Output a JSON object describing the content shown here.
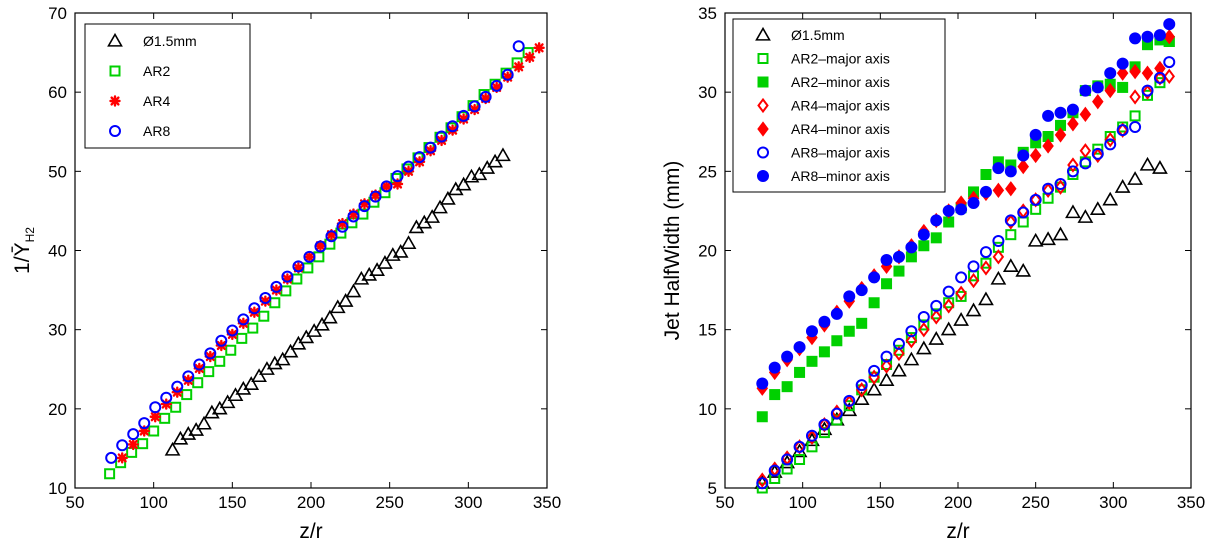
{
  "chart_data": [
    {
      "type": "scatter",
      "xlabel": "z/r",
      "ylabel": "1/",
      "ylabel_symbol": "Ȳ",
      "ylabel_subscript": "H2",
      "xlim": [
        50,
        350
      ],
      "ylim": [
        10,
        70
      ],
      "xticks": [
        "50",
        "100",
        "150",
        "200",
        "250",
        "300",
        "350"
      ],
      "yticks": [
        "10",
        "20",
        "30",
        "40",
        "50",
        "60",
        "70"
      ],
      "grid": false,
      "legend_position": "top-left",
      "series": [
        {
          "name": "Ø1.5mm",
          "marker": "triangle",
          "filled": false,
          "color": "#000000",
          "x": [
            112,
            117,
            122,
            127,
            132,
            137,
            142,
            147,
            152,
            157,
            162,
            167,
            172,
            177,
            182,
            187,
            192,
            197,
            202,
            207,
            212,
            217,
            222,
            227,
            232,
            237,
            242,
            247,
            252,
            257,
            262,
            267,
            272,
            277,
            282,
            287,
            292,
            297,
            302,
            307,
            312,
            317,
            322
          ],
          "y": [
            14.8,
            16.2,
            16.8,
            17.3,
            18.1,
            19.5,
            20.0,
            20.8,
            21.7,
            22.5,
            23.1,
            24.1,
            25.0,
            25.7,
            26.2,
            27.2,
            28.2,
            29.0,
            29.8,
            30.6,
            31.5,
            32.8,
            33.6,
            34.8,
            36.4,
            36.9,
            37.5,
            38.4,
            39.4,
            39.8,
            40.9,
            42.9,
            43.5,
            44.2,
            45.4,
            46.5,
            47.7,
            48.3,
            49.3,
            49.6,
            50.4,
            51.2,
            52.0
          ]
        },
        {
          "name": "AR2",
          "marker": "square",
          "filled": false,
          "color": "#00d000",
          "x": [
            72,
            79,
            86,
            93,
            100,
            107,
            114,
            121,
            128,
            135,
            142,
            149,
            156,
            163,
            170,
            177,
            184,
            191,
            198,
            205,
            212,
            219,
            226,
            233,
            240,
            247,
            254,
            261,
            268,
            275,
            282,
            289,
            296,
            303,
            310,
            317,
            324,
            331,
            338
          ],
          "y": [
            11.8,
            13.2,
            14.5,
            15.6,
            17.2,
            18.8,
            20.2,
            21.8,
            23.3,
            24.7,
            26.0,
            27.4,
            28.9,
            30.2,
            31.7,
            33.4,
            34.9,
            36.4,
            37.8,
            39.2,
            40.8,
            42.2,
            43.5,
            44.6,
            46.1,
            47.3,
            49.1,
            50.3,
            51.7,
            53.0,
            54.3,
            55.5,
            56.9,
            58.3,
            59.7,
            61.0,
            62.4,
            63.7,
            65.0
          ]
        },
        {
          "name": "AR4",
          "marker": "asterisk",
          "filled": true,
          "color": "#ff0000",
          "x": [
            80,
            87,
            94,
            101,
            108,
            115,
            122,
            129,
            136,
            143,
            150,
            157,
            164,
            171,
            178,
            185,
            192,
            199,
            206,
            213,
            220,
            227,
            234,
            241,
            248,
            255,
            262,
            269,
            276,
            283,
            290,
            297,
            304,
            311,
            318,
            325,
            332,
            339,
            345
          ],
          "y": [
            13.8,
            15.5,
            17.2,
            19.0,
            20.6,
            22.1,
            23.6,
            25.1,
            26.6,
            28.0,
            29.4,
            30.8,
            32.2,
            33.6,
            35.0,
            36.4,
            37.8,
            39.2,
            40.6,
            42.0,
            43.4,
            44.6,
            45.9,
            47.0,
            48.1,
            48.4,
            50.0,
            51.2,
            52.6,
            53.9,
            55.2,
            56.6,
            57.8,
            59.2,
            60.6,
            61.9,
            63.2,
            64.4,
            65.6
          ]
        },
        {
          "name": "AR8",
          "marker": "circle",
          "filled": false,
          "color": "#0000ff",
          "x": [
            73,
            80,
            87,
            94,
            101,
            108,
            115,
            122,
            129,
            136,
            143,
            150,
            157,
            164,
            171,
            178,
            185,
            192,
            199,
            206,
            213,
            220,
            227,
            234,
            241,
            248,
            255,
            262,
            269,
            276,
            283,
            290,
            297,
            304,
            311,
            318,
            325,
            332
          ],
          "y": [
            13.8,
            15.4,
            16.8,
            18.2,
            20.2,
            21.4,
            22.8,
            24.1,
            25.6,
            27.0,
            28.6,
            29.9,
            31.3,
            32.7,
            34.0,
            35.4,
            36.7,
            38.0,
            39.2,
            40.5,
            41.8,
            43.0,
            44.3,
            45.6,
            46.8,
            48.1,
            49.4,
            50.6,
            51.8,
            53.0,
            54.4,
            55.7,
            57.0,
            58.2,
            59.4,
            60.8,
            62.2,
            65.8
          ]
        }
      ]
    },
    {
      "type": "scatter",
      "xlabel": "z/r",
      "ylabel": "Jet HalfWidth (mm)",
      "xlim": [
        50,
        350
      ],
      "ylim": [
        5,
        35
      ],
      "xticks": [
        "50",
        "100",
        "150",
        "200",
        "250",
        "300",
        "350"
      ],
      "yticks": [
        "5",
        "10",
        "15",
        "20",
        "25",
        "30",
        "35"
      ],
      "grid": false,
      "legend_position": "top-left",
      "series": [
        {
          "name": "Ø1.5mm",
          "marker": "triangle",
          "filled": false,
          "color": "#000000",
          "x": [
            74,
            82,
            90,
            98,
            106,
            114,
            122,
            130,
            138,
            146,
            154,
            162,
            170,
            178,
            186,
            194,
            202,
            210,
            218,
            226,
            234,
            242,
            250,
            258,
            266,
            274,
            282,
            290,
            298,
            306,
            314,
            322,
            330
          ],
          "y": [
            5.3,
            6.0,
            6.6,
            7.3,
            8.0,
            8.7,
            9.3,
            9.9,
            10.6,
            11.2,
            11.8,
            12.4,
            13.1,
            13.8,
            14.4,
            15.0,
            15.6,
            16.2,
            16.9,
            18.2,
            19.0,
            18.7,
            20.6,
            20.7,
            21.0,
            22.4,
            22.1,
            22.6,
            23.2,
            24.0,
            24.5,
            25.4,
            25.2
          ]
        },
        {
          "name": "AR2–major axis",
          "marker": "square",
          "filled": false,
          "color": "#00d000",
          "x": [
            74,
            82,
            90,
            98,
            106,
            114,
            122,
            130,
            138,
            146,
            154,
            162,
            170,
            178,
            186,
            194,
            202,
            210,
            218,
            226,
            234,
            242,
            250,
            258,
            266,
            274,
            282,
            290,
            298,
            306,
            314,
            322,
            330,
            336
          ],
          "y": [
            5.0,
            5.6,
            6.2,
            6.8,
            7.6,
            8.5,
            9.3,
            10.2,
            11.2,
            12.0,
            12.8,
            13.7,
            14.5,
            15.3,
            16.0,
            16.7,
            17.1,
            18.4,
            19.2,
            20.2,
            21.0,
            21.8,
            22.6,
            23.3,
            24.0,
            24.8,
            25.6,
            26.4,
            27.2,
            27.8,
            28.5,
            29.8,
            30.6,
            33.2
          ]
        },
        {
          "name": "AR2–minor axis",
          "marker": "square",
          "filled": true,
          "color": "#00d000",
          "x": [
            74,
            82,
            90,
            98,
            106,
            114,
            122,
            130,
            138,
            146,
            154,
            162,
            170,
            178,
            186,
            194,
            202,
            210,
            218,
            226,
            234,
            242,
            250,
            258,
            266,
            274,
            282,
            290,
            298,
            306,
            314,
            322,
            330,
            336
          ],
          "y": [
            9.5,
            10.9,
            11.4,
            12.3,
            13.0,
            13.6,
            14.3,
            14.9,
            15.4,
            16.7,
            17.9,
            18.7,
            19.6,
            20.3,
            20.8,
            21.8,
            22.7,
            23.7,
            24.8,
            25.6,
            25.4,
            26.2,
            26.8,
            27.2,
            27.9,
            28.7,
            30.1,
            30.4,
            30.5,
            30.3,
            31.6,
            33.0,
            33.3,
            33.2
          ]
        },
        {
          "name": "AR4–major axis",
          "marker": "diamond",
          "filled": false,
          "color": "#ff0000",
          "x": [
            74,
            82,
            90,
            98,
            106,
            114,
            122,
            130,
            138,
            146,
            154,
            162,
            170,
            178,
            186,
            194,
            202,
            210,
            218,
            226,
            234,
            242,
            250,
            258,
            266,
            274,
            282,
            290,
            298,
            306,
            314,
            322,
            330,
            336
          ],
          "y": [
            5.5,
            6.2,
            6.9,
            7.6,
            8.2,
            9.0,
            9.8,
            10.4,
            11.2,
            12.0,
            12.7,
            13.5,
            14.3,
            15.0,
            15.8,
            16.5,
            17.3,
            18.1,
            18.9,
            19.6,
            21.8,
            22.5,
            23.2,
            23.8,
            24.0,
            25.4,
            26.3,
            26.0,
            27.0,
            27.6,
            29.7,
            30.0,
            30.9,
            31.0
          ]
        },
        {
          "name": "AR4–minor axis",
          "marker": "diamond",
          "filled": true,
          "color": "#ff0000",
          "x": [
            74,
            82,
            90,
            98,
            106,
            114,
            122,
            130,
            138,
            146,
            154,
            162,
            170,
            178,
            186,
            194,
            202,
            210,
            218,
            226,
            234,
            242,
            250,
            258,
            266,
            274,
            282,
            290,
            298,
            306,
            314,
            322,
            330,
            336
          ],
          "y": [
            11.3,
            12.3,
            13.1,
            13.8,
            14.5,
            15.3,
            16.1,
            16.8,
            17.6,
            18.4,
            19.0,
            19.6,
            20.3,
            21.2,
            21.9,
            22.5,
            23.0,
            23.3,
            23.6,
            23.8,
            23.9,
            25.3,
            26.0,
            26.6,
            27.3,
            28.0,
            28.6,
            29.4,
            30.1,
            31.2,
            31.3,
            31.2,
            31.5,
            33.5
          ]
        },
        {
          "name": "AR8–major axis",
          "marker": "circle",
          "filled": false,
          "color": "#0000ff",
          "x": [
            74,
            82,
            90,
            98,
            106,
            114,
            122,
            130,
            138,
            146,
            154,
            162,
            170,
            178,
            186,
            194,
            202,
            210,
            218,
            226,
            234,
            242,
            250,
            258,
            266,
            274,
            282,
            290,
            298,
            306,
            314,
            322,
            330,
            336
          ],
          "y": [
            5.3,
            6.1,
            6.8,
            7.6,
            8.3,
            9.0,
            9.7,
            10.5,
            11.5,
            12.4,
            13.3,
            14.1,
            14.9,
            15.8,
            16.5,
            17.4,
            18.3,
            19.0,
            19.9,
            20.6,
            21.9,
            22.4,
            23.2,
            23.9,
            24.2,
            25.0,
            25.5,
            26.1,
            26.7,
            27.6,
            27.8,
            30.1,
            30.9,
            31.9
          ]
        },
        {
          "name": "AR8–minor axis",
          "marker": "circle",
          "filled": true,
          "color": "#0000ff",
          "x": [
            74,
            82,
            90,
            98,
            106,
            114,
            122,
            130,
            138,
            146,
            154,
            162,
            170,
            178,
            186,
            194,
            202,
            210,
            218,
            226,
            234,
            242,
            250,
            258,
            266,
            274,
            282,
            290,
            298,
            306,
            314,
            322,
            330,
            336
          ],
          "y": [
            11.6,
            12.6,
            13.3,
            13.9,
            14.9,
            15.5,
            16.0,
            17.1,
            17.5,
            18.3,
            19.4,
            19.6,
            20.2,
            21.0,
            21.9,
            22.5,
            22.6,
            23.0,
            23.7,
            25.2,
            25.0,
            26.0,
            27.3,
            28.5,
            28.7,
            28.9,
            30.1,
            30.3,
            31.2,
            31.8,
            33.4,
            33.5,
            33.6,
            34.3
          ]
        }
      ]
    }
  ]
}
